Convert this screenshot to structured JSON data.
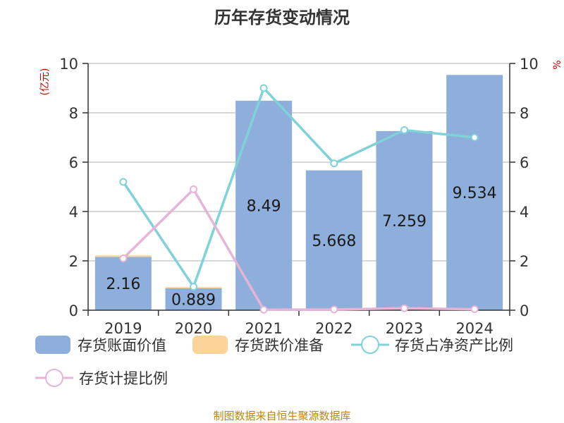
{
  "chart_data": {
    "type": "bar",
    "title": "历年存货变动情况",
    "left_axis_unit": "(亿元)",
    "right_axis_unit": "%",
    "categories": [
      "2019",
      "2020",
      "2021",
      "2022",
      "2023",
      "2024"
    ],
    "ylim_left": [
      0,
      10
    ],
    "ylim_right": [
      0,
      10
    ],
    "yticks": [
      "0",
      "2",
      "4",
      "6",
      "8",
      "10"
    ],
    "grid": true,
    "legend_position": "bottom",
    "series": [
      {
        "name": "存货账面价值",
        "type": "bar",
        "axis": "left",
        "color": "#8eaedb",
        "values": [
          2.16,
          0.889,
          8.49,
          5.668,
          7.259,
          9.534
        ],
        "labels": [
          "2.16",
          "0.889",
          "8.49",
          "5.668",
          "7.259",
          "9.534"
        ]
      },
      {
        "name": "存货跌价准备",
        "type": "bar",
        "stacked": true,
        "axis": "left",
        "color": "#fcd49a",
        "values": [
          0.06,
          0.05,
          0.0,
          0.0,
          0.0,
          0.0
        ]
      },
      {
        "name": "存货占净资产比例",
        "type": "line",
        "axis": "right",
        "color": "#7fd3d8",
        "values": [
          5.2,
          0.95,
          9.0,
          5.95,
          7.3,
          7.0
        ]
      },
      {
        "name": "存货计提比例",
        "type": "line",
        "axis": "right",
        "color": "#e6b5d6",
        "values": [
          2.1,
          4.9,
          0.02,
          0.03,
          0.08,
          0.04
        ]
      }
    ]
  },
  "footer": {
    "source": "制图数据来自恒生聚源数据库"
  }
}
